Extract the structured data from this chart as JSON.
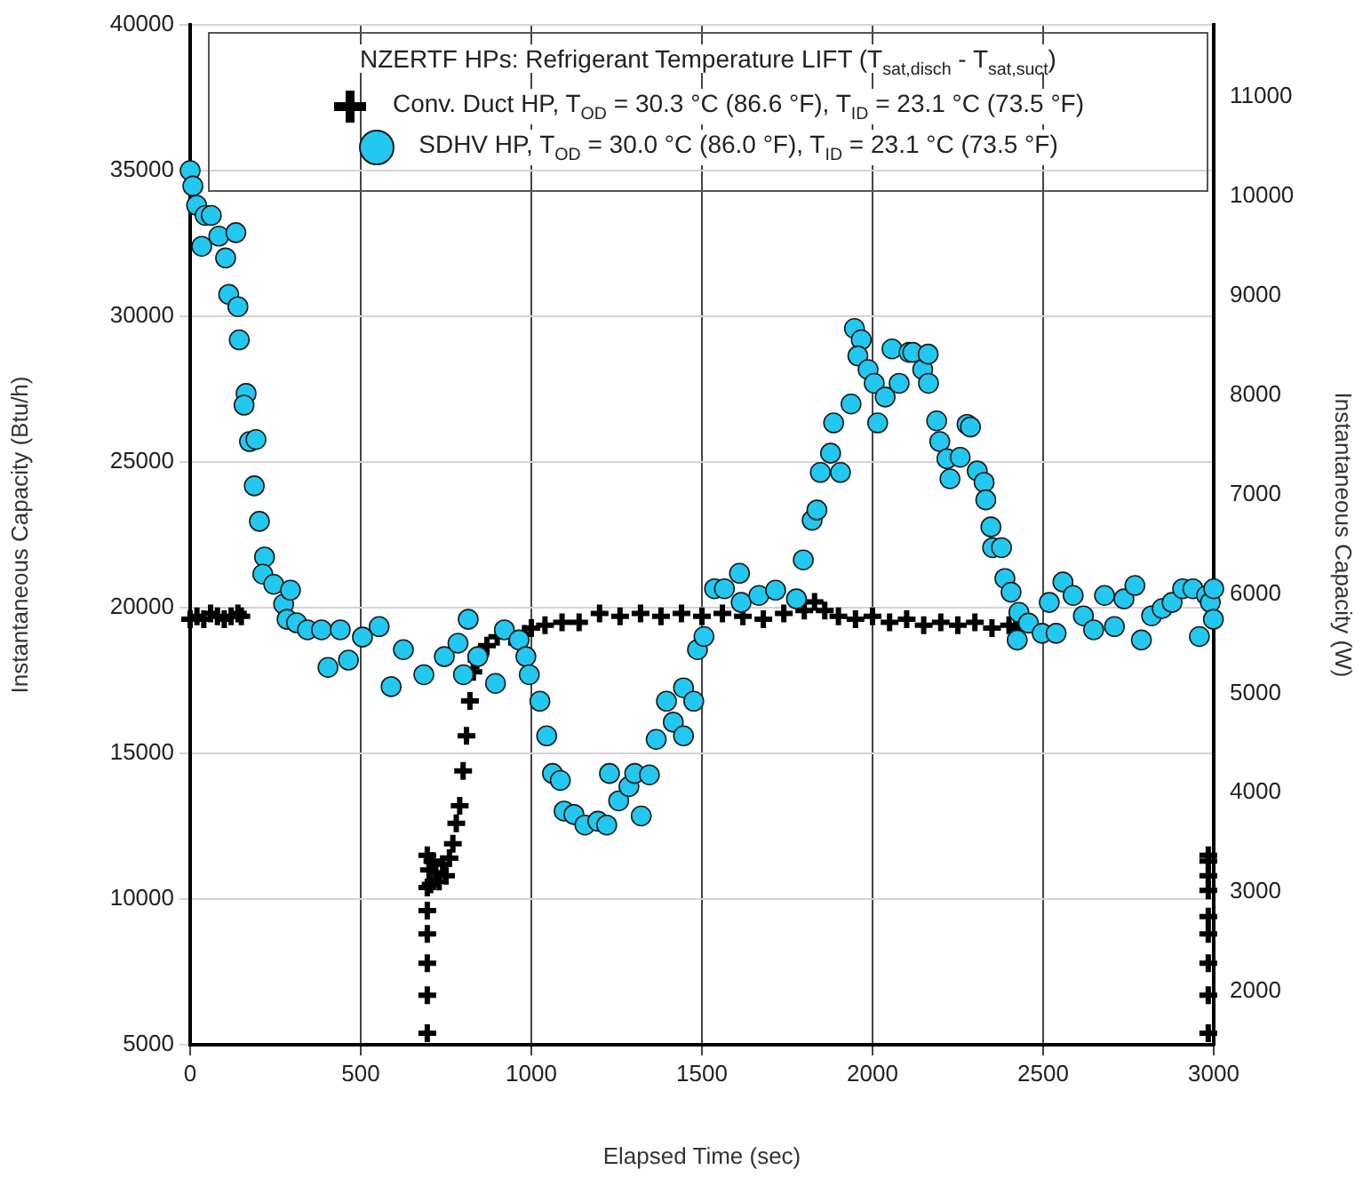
{
  "chart_data": {
    "type": "scatter",
    "xlabel": "Elapsed Time (sec)",
    "ylabel": "Instantaneous Capacity (Btu/h)",
    "y2label": "Instantaneous Capacity (W)",
    "legend_title": "NZERTF HPs:  Refrigerant Temperature LIFT (T$_{sat,disch}$ - T$_{sat,suct}$)",
    "legend": "top right",
    "grid": true,
    "xlim": [
      0,
      3000
    ],
    "xticks": [
      0,
      500,
      1000,
      1500,
      2000,
      2500,
      3000
    ],
    "ylim": [
      5000,
      40000
    ],
    "yticks": [
      5000,
      10000,
      15000,
      20000,
      25000,
      30000,
      35000,
      40000
    ],
    "y2lim": [
      1465,
      11723
    ],
    "y2ticks": [
      2000,
      3000,
      4000,
      5000,
      6000,
      7000,
      8000,
      9000,
      10000,
      11000
    ],
    "series": [
      {
        "name": "Conv. Duct HP, T$_{OD}$ = 30.3 °C (86.6 °F), T$_{ID}$ = 23.1 °C (73.5 °F)",
        "color": "#000000",
        "marker": "cross",
        "x": [
          0,
          20,
          40,
          60,
          80,
          100,
          120,
          140,
          150,
          695,
          695,
          695,
          695,
          695,
          695,
          695,
          700,
          705,
          710,
          720,
          730,
          740,
          750,
          760,
          770,
          780,
          790,
          800,
          810,
          820,
          830,
          840,
          850,
          870,
          900,
          940,
          980,
          1000,
          1040,
          1090,
          1140,
          1200,
          1260,
          1320,
          1380,
          1440,
          1500,
          1560,
          1620,
          1680,
          1740,
          1800,
          1830,
          1860,
          1900,
          1950,
          2000,
          2050,
          2100,
          2150,
          2200,
          2250,
          2300,
          2350,
          2400,
          2420,
          2984,
          2984,
          2984,
          2984,
          2984,
          2984,
          2984,
          2984,
          2984
        ],
        "values": [
          19600,
          19700,
          19600,
          19800,
          19700,
          19600,
          19700,
          19800,
          19700,
          5400,
          6700,
          7800,
          8800,
          9600,
          10400,
          11500,
          11000,
          10500,
          11300,
          10900,
          10600,
          11200,
          10800,
          11400,
          11900,
          12600,
          13200,
          14400,
          15600,
          16800,
          17800,
          18200,
          18400,
          18700,
          19000,
          19000,
          19100,
          19300,
          19400,
          19500,
          19500,
          19800,
          19700,
          19800,
          19700,
          19800,
          19700,
          19800,
          19700,
          19600,
          19800,
          19900,
          20200,
          19900,
          19700,
          19600,
          19700,
          19500,
          19600,
          19400,
          19500,
          19400,
          19500,
          19300,
          19400,
          19300,
          5400,
          6700,
          7800,
          8800,
          9400,
          10300,
          10800,
          11300,
          11500
        ]
      },
      {
        "name": "SDHV HP, T$_{OD}$ = 30.0 °C (86.0 °F), T$_{ID}$ = 23.1 °C (73.5 °F)",
        "color": "#22c8ef",
        "marker": "circle",
        "x": [
          0,
          8,
          19,
          44,
          62,
          34,
          84,
          104,
          134,
          113,
          140,
          144,
          164,
          158,
          174,
          193,
          188,
          203,
          218,
          213,
          245,
          274,
          294,
          284,
          312,
          344,
          385,
          404,
          440,
          464,
          505,
          554,
          589,
          625,
          685,
          745,
          785,
          815,
          801,
          843,
          895,
          921,
          964,
          984,
          994,
          1025,
          1045,
          1062,
          1085,
          1096,
          1125,
          1157,
          1195,
          1221,
          1229,
          1256,
          1286,
          1303,
          1322,
          1346,
          1366,
          1396,
          1416,
          1446,
          1446,
          1476,
          1487,
          1506,
          1537,
          1566,
          1610,
          1615,
          1667,
          1716,
          1777,
          1797,
          1823,
          1837,
          1847,
          1877,
          1906,
          1886,
          1937,
          1947,
          1967,
          1957,
          1987,
          2005,
          2015,
          2037,
          2057,
          2078,
          2107,
          2118,
          2147,
          2163,
          2164,
          2188,
          2197,
          2218,
          2227,
          2257,
          2277,
          2287,
          2307,
          2327,
          2332,
          2347,
          2352,
          2378,
          2388,
          2406,
          2429,
          2424,
          2457,
          2497,
          2518,
          2538,
          2558,
          2588,
          2618,
          2648,
          2680,
          2709,
          2737,
          2769,
          2788,
          2818,
          2849,
          2878,
          2909,
          2939,
          2958,
          2979,
          2990,
          2999,
          3000
        ],
        "values": [
          35000,
          34470,
          33810,
          33460,
          33460,
          32400,
          32750,
          32000,
          32870,
          30750,
          30330,
          29190,
          27350,
          26950,
          25700,
          25770,
          24180,
          22960,
          21740,
          21150,
          20800,
          20120,
          20600,
          19600,
          19480,
          19240,
          19240,
          17950,
          19240,
          18200,
          18990,
          19350,
          17290,
          18560,
          17700,
          18320,
          18780,
          19600,
          17700,
          18320,
          17400,
          19240,
          18890,
          18320,
          17700,
          16790,
          15600,
          14310,
          14070,
          13020,
          12900,
          12540,
          12670,
          12540,
          14310,
          13370,
          13860,
          14310,
          12850,
          14260,
          15480,
          16790,
          16070,
          15600,
          17250,
          16790,
          18560,
          19010,
          20650,
          20650,
          21180,
          20180,
          20420,
          20600,
          20300,
          21640,
          23000,
          23350,
          24640,
          25300,
          24640,
          26340,
          26990,
          29580,
          29190,
          28640,
          28170,
          27700,
          26340,
          27230,
          28880,
          27700,
          28760,
          28760,
          28170,
          28700,
          27700,
          26410,
          25700,
          25110,
          24420,
          25160,
          26290,
          26200,
          24690,
          24300,
          23700,
          22770,
          22060,
          22060,
          21000,
          20530,
          19840,
          18890,
          19470,
          19120,
          20180,
          19120,
          20880,
          20420,
          19720,
          19240,
          20420,
          19350,
          20300,
          20760,
          18890,
          19720,
          19970,
          20180,
          20650,
          20650,
          19010,
          20420,
          20180,
          19600,
          20650
        ]
      }
    ]
  }
}
